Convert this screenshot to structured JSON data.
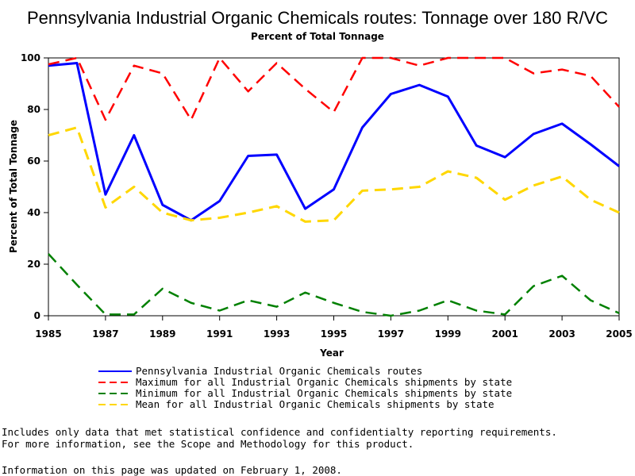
{
  "chart_data": {
    "type": "line",
    "title": "Pennsylvania Industrial Organic Chemicals routes: Tonnage over 180 R/VC",
    "subtitle": "Percent of Total Tonnage",
    "xlabel": "Year",
    "ylabel": "Percent of Total Tonnage",
    "xlim": [
      1985,
      2005
    ],
    "ylim": [
      0,
      100
    ],
    "x_ticks": [
      "1985",
      "1987",
      "1989",
      "1991",
      "1993",
      "1995",
      "1997",
      "1999",
      "2001",
      "2003",
      "2005"
    ],
    "y_ticks": [
      "0",
      "20",
      "40",
      "60",
      "80",
      "100"
    ],
    "grid": false,
    "legend_position": "bottom",
    "x": [
      1985,
      1986,
      1987,
      1988,
      1989,
      1990,
      1991,
      1992,
      1993,
      1994,
      1995,
      1996,
      1997,
      1998,
      1999,
      2000,
      2001,
      2002,
      2003,
      2004,
      2005
    ],
    "series": [
      {
        "name": "Pennsylvania Industrial Organic Chemicals routes",
        "color": "#0000ff",
        "style": "solid",
        "values": [
          97,
          98,
          47,
          70,
          43,
          37,
          44.5,
          62,
          62.5,
          41.5,
          49,
          73,
          86,
          89.5,
          85,
          66,
          61.5,
          70.5,
          74.5,
          66.5,
          58
        ]
      },
      {
        "name": "Maximum for all Industrial Organic Chemicals shipments by state",
        "color": "#ff0000",
        "style": "dashed",
        "values": [
          97.5,
          100,
          76,
          97,
          94,
          76,
          100,
          87,
          98,
          88,
          79,
          100,
          100,
          97,
          100,
          100,
          100,
          94,
          95.5,
          93,
          81
        ]
      },
      {
        "name": "Minimum for all Industrial Organic Chemicals shipments by state",
        "color": "#008000",
        "style": "dashed",
        "values": [
          24,
          12,
          0.5,
          0.5,
          10.5,
          5,
          2,
          6,
          3.5,
          9,
          5,
          1.5,
          0,
          2,
          6,
          2,
          0.5,
          11.5,
          15.5,
          6,
          1
        ]
      },
      {
        "name": "Mean for all Industrial Organic Chemicals shipments by state",
        "color": "#ffd700",
        "style": "dashed",
        "values": [
          70,
          73,
          42,
          50,
          40,
          37,
          38,
          40,
          42.5,
          36.5,
          37,
          48.5,
          49,
          50,
          56,
          53.5,
          45,
          50.5,
          54,
          45,
          40
        ]
      }
    ]
  },
  "notes": {
    "line1": "Includes only data that met statistical confidence and confidentialty reporting requirements.",
    "line2": "For more information, see the Scope and Methodology for this product.",
    "line3": "Information on this page was updated on February 1, 2008."
  }
}
